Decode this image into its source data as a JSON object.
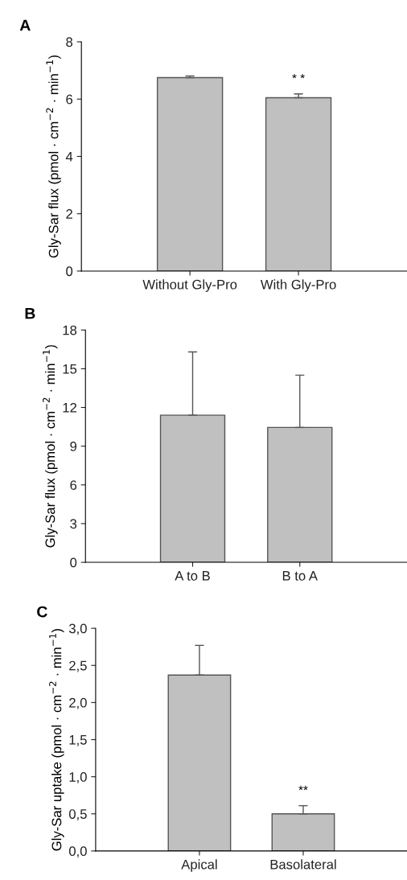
{
  "chart_data": [
    {
      "type": "bar",
      "title": "A",
      "ylabel": "Gly-Sar flux (pmol · cm$^{−2}$ · min$^{−1}$)",
      "categories": [
        "Without Gly-Pro",
        "With Gly-Pro"
      ],
      "values": [
        6.75,
        6.05
      ],
      "errors": [
        [
          6.75,
          6.81
        ],
        [
          6.05,
          6.18
        ]
      ],
      "color": "#c0c0c0",
      "ylim": [
        0,
        8
      ],
      "yticks": [
        0,
        2,
        4,
        6,
        8
      ],
      "grid": false,
      "legend": false,
      "annotations": [
        {
          "text": "* *",
          "x": "With Gly-Pro",
          "y": 6.18
        }
      ]
    },
    {
      "type": "bar",
      "title": "B",
      "ylabel": "Gly-Sar flux (pmol · cm$^{−2}$ · min$^{−1}$)",
      "categories": [
        "A to B",
        "B to A"
      ],
      "values": [
        11.4,
        10.45
      ],
      "errors": [
        [
          11.4,
          16.3
        ],
        [
          10.45,
          14.5
        ]
      ],
      "color": "#c0c0c0",
      "ylim": [
        0,
        18
      ],
      "yticks": [
        0,
        3,
        6,
        9,
        12,
        15,
        18
      ],
      "grid": false,
      "legend": false
    },
    {
      "type": "bar",
      "title": "C",
      "ylabel": "Gly-Sar uptake (pmol · cm$^{−2}$ · min$^{−1}$)",
      "categories": [
        "Apical",
        "Basolateral"
      ],
      "values": [
        2.37,
        0.5
      ],
      "errors": [
        [
          2.37,
          2.77
        ],
        [
          0.5,
          0.61
        ]
      ],
      "color": "#c0c0c0",
      "ylim": [
        0,
        3.0
      ],
      "yticks": [
        {
          "value": 0,
          "label": "0,0"
        },
        {
          "value": 0.5,
          "label": "0,5"
        },
        {
          "value": 1.0,
          "label": "1,0"
        },
        {
          "value": 1.5,
          "label": "1,5"
        },
        {
          "value": 2.0,
          "label": "2,0"
        },
        {
          "value": 2.5,
          "label": "2,5"
        },
        {
          "value": 3.0,
          "label": "3,0"
        }
      ],
      "grid": false,
      "legend": false,
      "annotations": [
        {
          "text": "**",
          "x": "Basolateral",
          "y": 0.61
        }
      ]
    }
  ]
}
